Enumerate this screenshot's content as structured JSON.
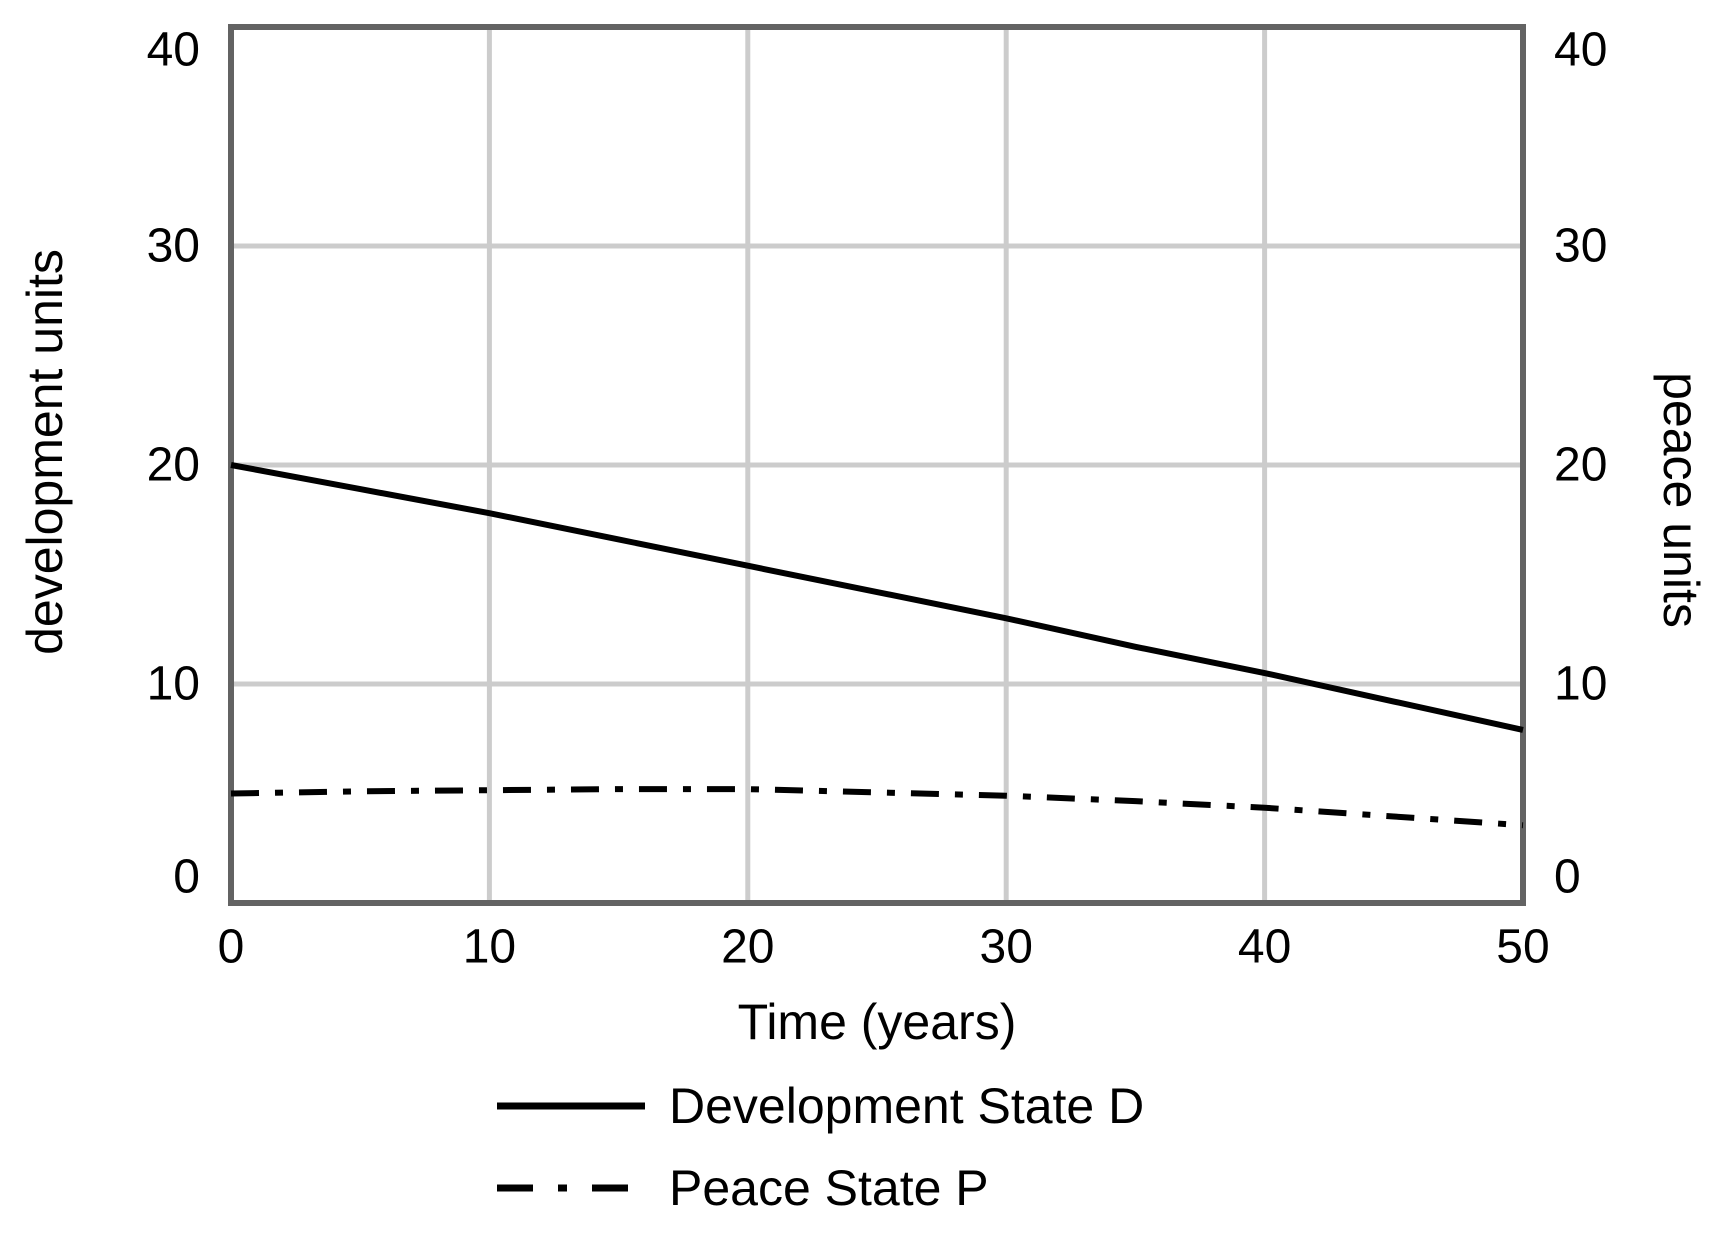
{
  "figure": {
    "background": "#ffffff",
    "border_color": "#636363",
    "grid_color": "#cccccc",
    "line_color": "#000000",
    "text_color": "#000000"
  },
  "chart_data": {
    "type": "line",
    "title": "",
    "xlabel": "Time (years)",
    "ylabel_left": "development units",
    "ylabel_right": "peace units",
    "xlim": [
      0,
      50
    ],
    "ylim": [
      0,
      40
    ],
    "xticks": [
      0,
      10,
      20,
      30,
      40,
      50
    ],
    "yticks_left": [
      0,
      10,
      20,
      30,
      40
    ],
    "yticks_right": [
      0,
      10,
      20,
      30,
      40
    ],
    "grid": true,
    "legend_position": "below-bottom-left",
    "x": [
      0,
      5,
      10,
      15,
      20,
      25,
      30,
      35,
      40,
      45,
      50
    ],
    "series": [
      {
        "name": "Development State D",
        "style": "solid",
        "color": "#000000",
        "axis": "left",
        "values": [
          20.0,
          18.9,
          17.8,
          16.6,
          15.4,
          14.2,
          13.0,
          11.7,
          10.5,
          9.2,
          7.9
        ]
      },
      {
        "name": "Peace State P",
        "style": "dashdot",
        "color": "#000000",
        "axis": "right",
        "values": [
          5.0,
          5.1,
          5.15,
          5.2,
          5.2,
          5.05,
          4.9,
          4.65,
          4.35,
          3.95,
          3.55
        ]
      }
    ]
  }
}
